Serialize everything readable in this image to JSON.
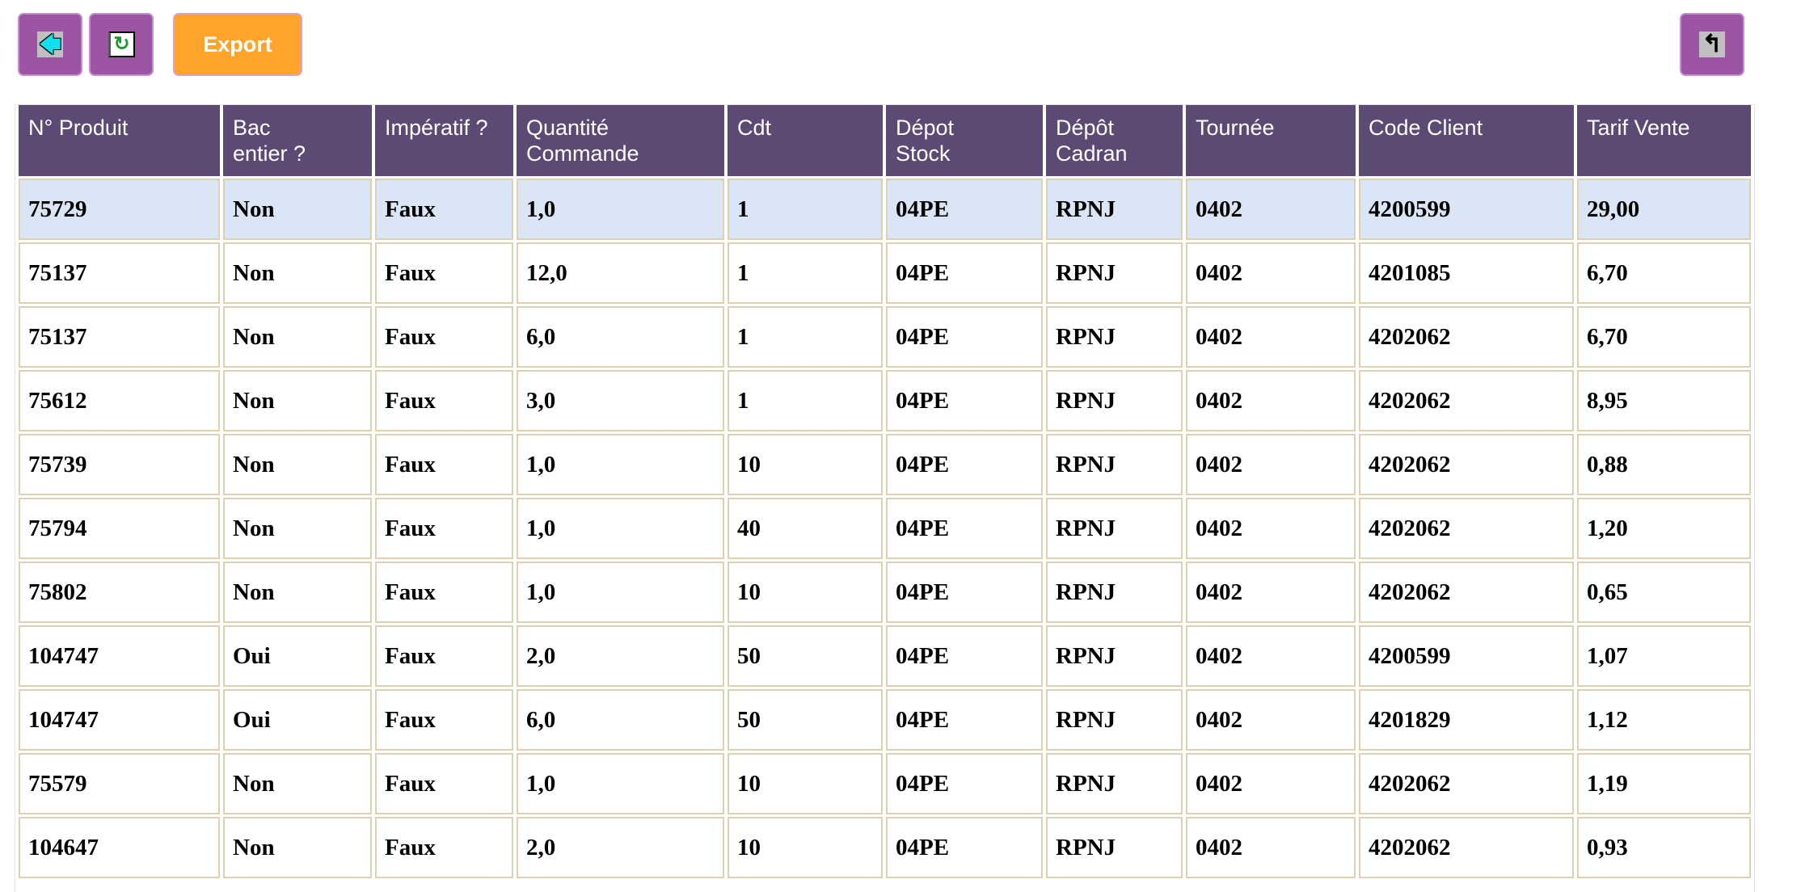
{
  "toolbar": {
    "back_icon": "back-arrow-icon",
    "refresh_icon": "refresh-icon",
    "export_label": "Export",
    "return_icon": "return-arrow-icon"
  },
  "colors": {
    "header_bg": "#5c4a75",
    "button_purple": "#9b55a3",
    "export_orange": "#ffa42b",
    "selected_row": "#dae6f6",
    "cell_border": "#dcd1b3"
  },
  "table": {
    "columns": [
      "N° Produit",
      "Bac entier ?",
      "Impératif ?",
      "Quantité Commande",
      "Cdt",
      "Dépot Stock",
      "Dépôt Cadran",
      "Tournée",
      "Code Client",
      "Tarif Vente"
    ],
    "rows": [
      [
        "75729",
        "Non",
        "Faux",
        "1,0",
        "1",
        "04PE",
        "RPNJ",
        "0402",
        "4200599",
        "29,00"
      ],
      [
        "75137",
        "Non",
        "Faux",
        "12,0",
        "1",
        "04PE",
        "RPNJ",
        "0402",
        "4201085",
        "6,70"
      ],
      [
        "75137",
        "Non",
        "Faux",
        "6,0",
        "1",
        "04PE",
        "RPNJ",
        "0402",
        "4202062",
        "6,70"
      ],
      [
        "75612",
        "Non",
        "Faux",
        "3,0",
        "1",
        "04PE",
        "RPNJ",
        "0402",
        "4202062",
        "8,95"
      ],
      [
        "75739",
        "Non",
        "Faux",
        "1,0",
        "10",
        "04PE",
        "RPNJ",
        "0402",
        "4202062",
        "0,88"
      ],
      [
        "75794",
        "Non",
        "Faux",
        "1,0",
        "40",
        "04PE",
        "RPNJ",
        "0402",
        "4202062",
        "1,20"
      ],
      [
        "75802",
        "Non",
        "Faux",
        "1,0",
        "10",
        "04PE",
        "RPNJ",
        "0402",
        "4202062",
        "0,65"
      ],
      [
        "104747",
        "Oui",
        "Faux",
        "2,0",
        "50",
        "04PE",
        "RPNJ",
        "0402",
        "4200599",
        "1,07"
      ],
      [
        "104747",
        "Oui",
        "Faux",
        "6,0",
        "50",
        "04PE",
        "RPNJ",
        "0402",
        "4201829",
        "1,12"
      ],
      [
        "75579",
        "Non",
        "Faux",
        "1,0",
        "10",
        "04PE",
        "RPNJ",
        "0402",
        "4202062",
        "1,19"
      ],
      [
        "104647",
        "Non",
        "Faux",
        "2,0",
        "10",
        "04PE",
        "RPNJ",
        "0402",
        "4202062",
        "0,93"
      ]
    ],
    "selected_row": 0
  }
}
